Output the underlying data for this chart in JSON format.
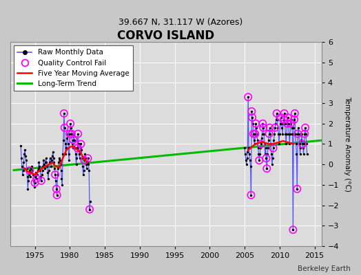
{
  "title": "CORVO ISLAND",
  "subtitle": "39.667 N, 31.117 W (Azores)",
  "ylabel": "Temperature Anomaly (°C)",
  "xlabel_watermark": "Berkeley Earth",
  "xlim": [
    1971.5,
    2016
  ],
  "ylim": [
    -4,
    6
  ],
  "yticks": [
    -4,
    -3,
    -2,
    -1,
    0,
    1,
    2,
    3,
    4,
    5,
    6
  ],
  "xticks": [
    1975,
    1980,
    1985,
    1990,
    1995,
    2000,
    2005,
    2010,
    2015
  ],
  "background_color": "#e0e0e0",
  "fig_background": "#c8c8c8",
  "raw_color": "#5555ff",
  "qc_color": "#ff00ff",
  "moving_avg_color": "#ff0000",
  "trend_color": "#00bb00",
  "raw_monthly_data": [
    [
      1973.0,
      0.9
    ],
    [
      1973.083,
      0.3
    ],
    [
      1973.167,
      -0.1
    ],
    [
      1973.25,
      -0.5
    ],
    [
      1973.333,
      -0.3
    ],
    [
      1973.417,
      0.1
    ],
    [
      1973.5,
      0.5
    ],
    [
      1973.583,
      0.7
    ],
    [
      1973.667,
      0.4
    ],
    [
      1973.75,
      0.2
    ],
    [
      1973.833,
      -0.2
    ],
    [
      1973.917,
      -0.6
    ],
    [
      1974.0,
      -1.2
    ],
    [
      1974.083,
      -0.8
    ],
    [
      1974.167,
      -0.5
    ],
    [
      1974.25,
      -0.3
    ],
    [
      1974.333,
      -0.6
    ],
    [
      1974.417,
      -0.4
    ],
    [
      1974.5,
      -0.2
    ],
    [
      1974.583,
      -0.1
    ],
    [
      1974.667,
      -0.3
    ],
    [
      1974.75,
      -0.5
    ],
    [
      1974.833,
      -0.8
    ],
    [
      1974.917,
      -1.1
    ],
    [
      1975.0,
      -0.9
    ],
    [
      1975.083,
      -0.6
    ],
    [
      1975.167,
      -0.4
    ],
    [
      1975.25,
      -0.7
    ],
    [
      1975.333,
      -0.5
    ],
    [
      1975.417,
      -0.3
    ],
    [
      1975.5,
      -0.2
    ],
    [
      1975.583,
      0.1
    ],
    [
      1975.667,
      -0.1
    ],
    [
      1975.75,
      -0.3
    ],
    [
      1975.833,
      -0.6
    ],
    [
      1975.917,
      -0.8
    ],
    [
      1976.0,
      -0.5
    ],
    [
      1976.083,
      -0.3
    ],
    [
      1976.167,
      -0.1
    ],
    [
      1976.25,
      0.2
    ],
    [
      1976.333,
      0.0
    ],
    [
      1976.417,
      -0.2
    ],
    [
      1976.5,
      0.1
    ],
    [
      1976.583,
      0.3
    ],
    [
      1976.667,
      0.1
    ],
    [
      1976.75,
      -0.1
    ],
    [
      1976.833,
      -0.4
    ],
    [
      1976.917,
      -0.7
    ],
    [
      1977.0,
      -0.3
    ],
    [
      1977.083,
      0.1
    ],
    [
      1977.167,
      0.3
    ],
    [
      1977.25,
      0.1
    ],
    [
      1977.333,
      -0.1
    ],
    [
      1977.417,
      0.2
    ],
    [
      1977.5,
      0.4
    ],
    [
      1977.583,
      0.6
    ],
    [
      1977.667,
      0.3
    ],
    [
      1977.75,
      0.1
    ],
    [
      1977.833,
      -0.2
    ],
    [
      1977.917,
      -0.5
    ],
    [
      1978.0,
      -0.8
    ],
    [
      1978.083,
      -1.2
    ],
    [
      1978.167,
      -1.5
    ],
    [
      1978.25,
      -0.5
    ],
    [
      1978.333,
      -0.2
    ],
    [
      1978.417,
      0.1
    ],
    [
      1978.5,
      0.3
    ],
    [
      1978.583,
      0.2
    ],
    [
      1978.667,
      0.0
    ],
    [
      1978.75,
      -0.3
    ],
    [
      1978.833,
      -0.7
    ],
    [
      1978.917,
      -1.0
    ],
    [
      1979.0,
      0.5
    ],
    [
      1979.083,
      1.2
    ],
    [
      1979.167,
      2.5
    ],
    [
      1979.25,
      1.8
    ],
    [
      1979.333,
      1.0
    ],
    [
      1979.417,
      0.5
    ],
    [
      1979.5,
      0.8
    ],
    [
      1979.583,
      1.3
    ],
    [
      1979.667,
      1.5
    ],
    [
      1979.75,
      1.0
    ],
    [
      1979.833,
      0.5
    ],
    [
      1979.917,
      0.2
    ],
    [
      1980.0,
      1.5
    ],
    [
      1980.083,
      2.0
    ],
    [
      1980.167,
      1.8
    ],
    [
      1980.25,
      1.5
    ],
    [
      1980.333,
      1.0
    ],
    [
      1980.417,
      0.8
    ],
    [
      1980.5,
      1.2
    ],
    [
      1980.583,
      1.5
    ],
    [
      1980.667,
      1.2
    ],
    [
      1980.75,
      0.8
    ],
    [
      1980.833,
      0.5
    ],
    [
      1980.917,
      0.0
    ],
    [
      1981.0,
      0.3
    ],
    [
      1981.083,
      0.8
    ],
    [
      1981.167,
      1.5
    ],
    [
      1981.25,
      1.0
    ],
    [
      1981.333,
      0.5
    ],
    [
      1981.417,
      0.3
    ],
    [
      1981.5,
      0.8
    ],
    [
      1981.583,
      1.0
    ],
    [
      1981.667,
      0.7
    ],
    [
      1981.75,
      0.3
    ],
    [
      1981.833,
      -0.1
    ],
    [
      1981.917,
      -0.5
    ],
    [
      1982.0,
      -0.3
    ],
    [
      1982.083,
      0.2
    ],
    [
      1982.167,
      0.5
    ],
    [
      1982.25,
      0.3
    ],
    [
      1982.333,
      0.0
    ],
    [
      1982.417,
      -0.2
    ],
    [
      1982.5,
      0.1
    ],
    [
      1982.583,
      0.3
    ],
    [
      1982.667,
      0.0
    ],
    [
      1982.75,
      -0.3
    ],
    [
      1982.833,
      -2.2
    ],
    [
      1982.917,
      -1.8
    ],
    [
      2005.0,
      0.8
    ],
    [
      2005.083,
      0.5
    ],
    [
      2005.167,
      0.2
    ],
    [
      2005.25,
      0.0
    ],
    [
      2005.333,
      0.3
    ],
    [
      2005.417,
      0.6
    ],
    [
      2005.5,
      3.3
    ],
    [
      2005.583,
      0.8
    ],
    [
      2005.667,
      0.5
    ],
    [
      2005.75,
      0.2
    ],
    [
      2005.833,
      -0.1
    ],
    [
      2005.917,
      -1.5
    ],
    [
      2006.0,
      2.6
    ],
    [
      2006.083,
      2.3
    ],
    [
      2006.167,
      2.0
    ],
    [
      2006.25,
      1.5
    ],
    [
      2006.333,
      1.2
    ],
    [
      2006.417,
      1.0
    ],
    [
      2006.5,
      1.5
    ],
    [
      2006.583,
      2.0
    ],
    [
      2006.667,
      1.8
    ],
    [
      2006.75,
      1.5
    ],
    [
      2006.833,
      1.2
    ],
    [
      2006.917,
      0.8
    ],
    [
      2007.0,
      0.5
    ],
    [
      2007.083,
      0.2
    ],
    [
      2007.167,
      0.5
    ],
    [
      2007.25,
      0.8
    ],
    [
      2007.333,
      1.0
    ],
    [
      2007.417,
      1.3
    ],
    [
      2007.5,
      1.5
    ],
    [
      2007.583,
      2.0
    ],
    [
      2007.667,
      1.8
    ],
    [
      2007.75,
      1.5
    ],
    [
      2007.833,
      1.0
    ],
    [
      2007.917,
      0.5
    ],
    [
      2008.0,
      0.8
    ],
    [
      2008.083,
      0.3
    ],
    [
      2008.167,
      -0.2
    ],
    [
      2008.25,
      0.5
    ],
    [
      2008.333,
      0.8
    ],
    [
      2008.417,
      1.2
    ],
    [
      2008.5,
      1.5
    ],
    [
      2008.583,
      1.8
    ],
    [
      2008.667,
      1.5
    ],
    [
      2008.75,
      1.0
    ],
    [
      2008.833,
      0.5
    ],
    [
      2008.917,
      0.0
    ],
    [
      2009.0,
      0.3
    ],
    [
      2009.083,
      0.8
    ],
    [
      2009.167,
      1.2
    ],
    [
      2009.25,
      1.5
    ],
    [
      2009.333,
      1.8
    ],
    [
      2009.417,
      2.0
    ],
    [
      2009.5,
      2.2
    ],
    [
      2009.583,
      2.5
    ],
    [
      2009.667,
      2.2
    ],
    [
      2009.75,
      1.8
    ],
    [
      2009.833,
      1.5
    ],
    [
      2009.917,
      1.0
    ],
    [
      2010.0,
      1.5
    ],
    [
      2010.083,
      2.0
    ],
    [
      2010.167,
      2.3
    ],
    [
      2010.25,
      2.0
    ],
    [
      2010.333,
      1.8
    ],
    [
      2010.417,
      1.5
    ],
    [
      2010.5,
      2.0
    ],
    [
      2010.583,
      2.2
    ],
    [
      2010.667,
      2.5
    ],
    [
      2010.75,
      2.0
    ],
    [
      2010.833,
      1.5
    ],
    [
      2010.917,
      1.0
    ],
    [
      2011.0,
      1.5
    ],
    [
      2011.083,
      2.0
    ],
    [
      2011.167,
      2.3
    ],
    [
      2011.25,
      2.0
    ],
    [
      2011.333,
      1.5
    ],
    [
      2011.417,
      1.0
    ],
    [
      2011.5,
      1.5
    ],
    [
      2011.583,
      2.0
    ],
    [
      2011.667,
      2.2
    ],
    [
      2011.75,
      1.8
    ],
    [
      2011.833,
      1.5
    ],
    [
      2011.917,
      -3.2
    ],
    [
      2012.0,
      1.8
    ],
    [
      2012.083,
      2.2
    ],
    [
      2012.167,
      2.5
    ],
    [
      2012.25,
      1.5
    ],
    [
      2012.333,
      1.0
    ],
    [
      2012.417,
      0.5
    ],
    [
      2012.5,
      -1.2
    ],
    [
      2012.583,
      1.5
    ],
    [
      2012.667,
      1.8
    ],
    [
      2012.75,
      1.5
    ],
    [
      2012.833,
      1.0
    ],
    [
      2012.917,
      0.5
    ],
    [
      2013.0,
      0.8
    ],
    [
      2013.083,
      1.2
    ],
    [
      2013.167,
      1.5
    ],
    [
      2013.25,
      1.0
    ],
    [
      2013.333,
      0.8
    ],
    [
      2013.417,
      0.5
    ],
    [
      2013.5,
      1.0
    ],
    [
      2013.583,
      1.5
    ],
    [
      2013.667,
      1.8
    ],
    [
      2013.75,
      1.5
    ],
    [
      2013.833,
      1.0
    ],
    [
      2013.917,
      0.5
    ]
  ],
  "qc_fail_points": [
    [
      1974.25,
      -0.3
    ],
    [
      1975.0,
      -0.9
    ],
    [
      1975.25,
      -0.7
    ],
    [
      1975.917,
      -0.8
    ],
    [
      1977.917,
      -0.5
    ],
    [
      1978.083,
      -1.2
    ],
    [
      1978.167,
      -1.5
    ],
    [
      1979.167,
      2.5
    ],
    [
      1979.25,
      1.8
    ],
    [
      1980.0,
      1.5
    ],
    [
      1980.083,
      2.0
    ],
    [
      1980.25,
      1.5
    ],
    [
      1980.5,
      1.2
    ],
    [
      1981.083,
      0.8
    ],
    [
      1981.167,
      1.5
    ],
    [
      1981.583,
      1.0
    ],
    [
      1982.083,
      0.2
    ],
    [
      1982.583,
      0.3
    ],
    [
      1982.833,
      -2.2
    ],
    [
      2005.5,
      3.3
    ],
    [
      2005.917,
      -1.5
    ],
    [
      2006.0,
      2.6
    ],
    [
      2006.083,
      2.3
    ],
    [
      2006.25,
      1.5
    ],
    [
      2006.5,
      1.5
    ],
    [
      2006.583,
      2.0
    ],
    [
      2007.083,
      0.2
    ],
    [
      2007.333,
      1.0
    ],
    [
      2007.583,
      2.0
    ],
    [
      2007.667,
      1.8
    ],
    [
      2008.083,
      0.3
    ],
    [
      2008.167,
      -0.2
    ],
    [
      2008.5,
      1.5
    ],
    [
      2008.583,
      1.8
    ],
    [
      2009.083,
      0.8
    ],
    [
      2009.333,
      1.8
    ],
    [
      2009.583,
      2.5
    ],
    [
      2010.167,
      2.3
    ],
    [
      2010.583,
      2.2
    ],
    [
      2010.667,
      2.5
    ],
    [
      2011.083,
      2.0
    ],
    [
      2011.167,
      2.3
    ],
    [
      2011.583,
      2.0
    ],
    [
      2011.917,
      -3.2
    ],
    [
      2012.083,
      2.2
    ],
    [
      2012.167,
      2.5
    ],
    [
      2012.5,
      -1.2
    ],
    [
      2012.583,
      1.5
    ],
    [
      2013.25,
      1.0
    ],
    [
      2013.583,
      1.5
    ],
    [
      2013.667,
      1.8
    ]
  ],
  "moving_avg_seg1": [
    [
      1973.5,
      -0.18
    ],
    [
      1974.0,
      -0.35
    ],
    [
      1974.5,
      -0.42
    ],
    [
      1975.0,
      -0.5
    ],
    [
      1975.5,
      -0.35
    ],
    [
      1976.0,
      -0.2
    ],
    [
      1976.5,
      -0.1
    ],
    [
      1977.0,
      0.0
    ],
    [
      1977.5,
      0.1
    ],
    [
      1978.0,
      -0.1
    ],
    [
      1978.5,
      -0.15
    ],
    [
      1979.0,
      0.3
    ],
    [
      1979.5,
      0.7
    ],
    [
      1980.0,
      0.85
    ],
    [
      1980.5,
      0.9
    ],
    [
      1981.0,
      0.75
    ],
    [
      1981.5,
      0.6
    ],
    [
      1982.0,
      0.3
    ],
    [
      1982.5,
      0.1
    ]
  ],
  "moving_avg_seg2": [
    [
      2005.5,
      0.7
    ],
    [
      2006.0,
      0.85
    ],
    [
      2006.5,
      1.0
    ],
    [
      2007.0,
      1.05
    ],
    [
      2007.5,
      1.1
    ],
    [
      2008.0,
      1.05
    ],
    [
      2008.5,
      1.0
    ],
    [
      2009.0,
      1.0
    ],
    [
      2009.5,
      1.05
    ],
    [
      2010.0,
      1.1
    ],
    [
      2010.5,
      1.15
    ],
    [
      2011.0,
      1.1
    ],
    [
      2011.5,
      1.05
    ],
    [
      2012.0,
      1.0
    ]
  ],
  "trend_x": [
    1972,
    2016
  ],
  "trend_y": [
    -0.28,
    1.18
  ]
}
